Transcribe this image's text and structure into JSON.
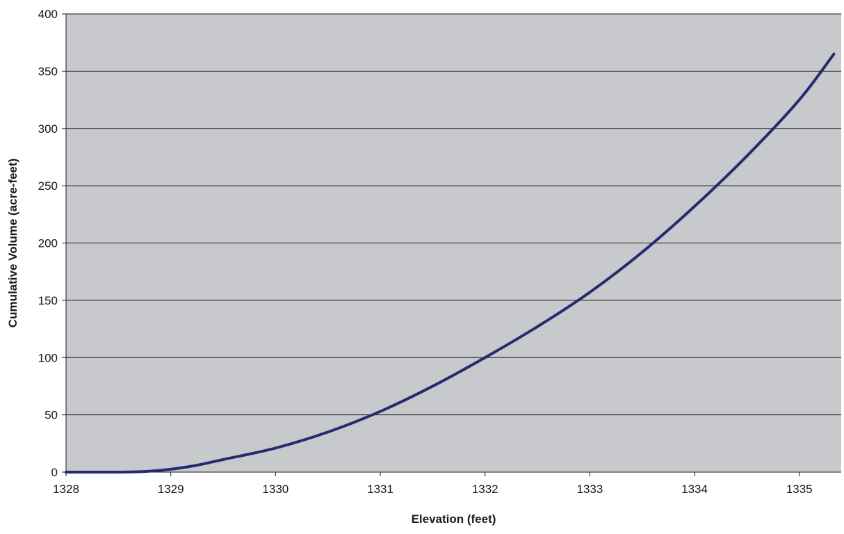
{
  "chart_data": {
    "type": "line",
    "title": "",
    "xlabel": "Elevation (feet)",
    "ylabel": "Cumulative Volume (acre-feet)",
    "xlim": [
      1328,
      1335.4
    ],
    "ylim": [
      0,
      400
    ],
    "x_ticks": [
      1328,
      1329,
      1330,
      1331,
      1332,
      1333,
      1334,
      1335
    ],
    "y_ticks": [
      0,
      50,
      100,
      150,
      200,
      250,
      300,
      350,
      400
    ],
    "grid": "horizontal",
    "series": [
      {
        "x": [
          1328.0,
          1328.5,
          1328.75,
          1329.0,
          1329.25,
          1329.5,
          1330.0,
          1330.5,
          1331.0,
          1331.5,
          1332.0,
          1332.5,
          1333.0,
          1333.5,
          1334.0,
          1334.5,
          1335.0,
          1335.33
        ],
        "y": [
          0,
          0,
          0.5,
          2.5,
          6,
          11,
          21,
          35,
          53,
          75,
          100,
          127,
          157,
          192,
          232,
          276,
          325,
          365
        ]
      }
    ]
  },
  "colors": {
    "plot_background": "#c8c9cd",
    "line": "#262a6e",
    "gridline": "#1a1a1a",
    "axis": "#1a1a1a"
  }
}
